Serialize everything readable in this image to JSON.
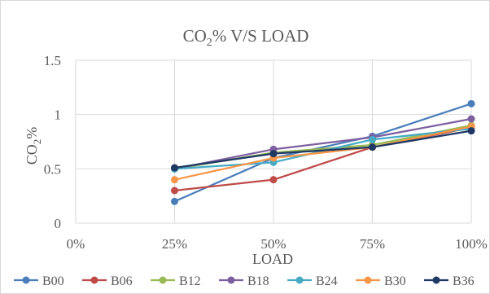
{
  "chart_data": {
    "type": "line",
    "title_main": "CO",
    "title_sub": "2",
    "title_rest": "% V/S LOAD",
    "xlabel": "LOAD",
    "ylabel_main": "CO",
    "ylabel_sub": "2",
    "ylabel_rest": "%",
    "categories": [
      "0%",
      "25%",
      "50%",
      "75%",
      "100%"
    ],
    "y_ticks": [
      "0",
      "0.5",
      "1",
      "1.5"
    ],
    "ylim": [
      0,
      1.5
    ],
    "grid": true,
    "legend_position": "bottom",
    "series": [
      {
        "name": "B00",
        "color": "#4a7ebb",
        "values": [
          null,
          0.2,
          0.6,
          0.8,
          1.1
        ]
      },
      {
        "name": "B06",
        "color": "#be4b48",
        "values": [
          null,
          0.3,
          0.4,
          0.7,
          0.88
        ]
      },
      {
        "name": "B12",
        "color": "#98b954",
        "values": [
          null,
          0.5,
          0.65,
          0.72,
          0.9
        ]
      },
      {
        "name": "B18",
        "color": "#7d5fa0",
        "values": [
          null,
          0.5,
          0.68,
          0.79,
          0.96
        ]
      },
      {
        "name": "B24",
        "color": "#46aac5",
        "values": [
          null,
          0.5,
          0.56,
          0.77,
          0.87
        ]
      },
      {
        "name": "B30",
        "color": "#f79646",
        "values": [
          null,
          0.4,
          0.6,
          0.7,
          0.89
        ]
      },
      {
        "name": "B36",
        "color": "#1f3864",
        "values": [
          null,
          0.51,
          0.64,
          0.7,
          0.85
        ]
      }
    ]
  }
}
